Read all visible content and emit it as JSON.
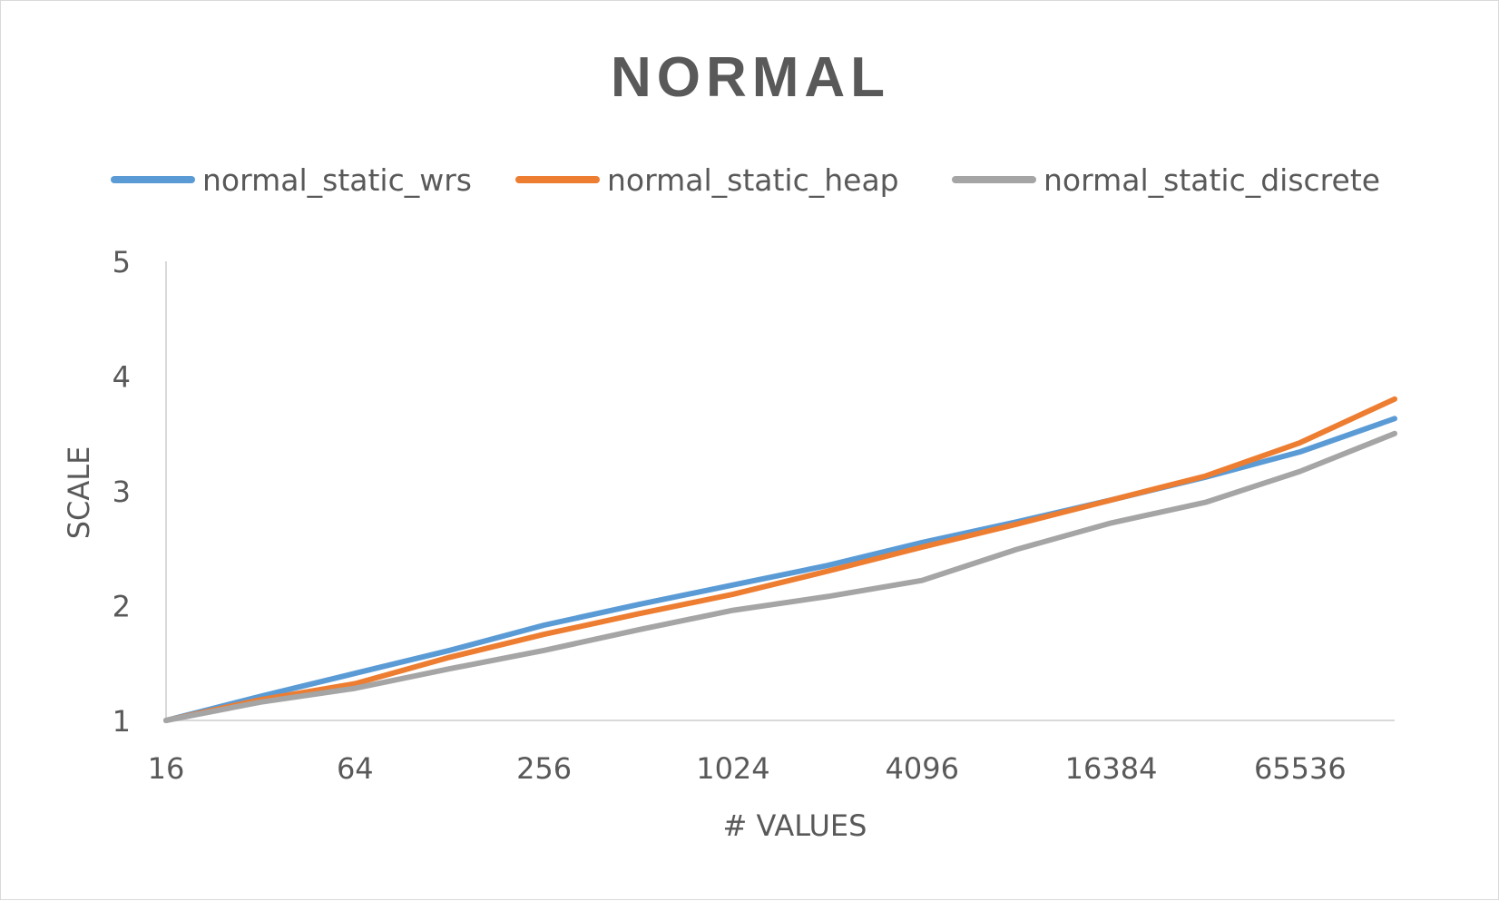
{
  "chart_data": {
    "type": "line",
    "title": "NORMAL",
    "xlabel": "# VALUES",
    "ylabel": "SCALE",
    "x": [
      16,
      32,
      64,
      128,
      256,
      512,
      1024,
      2048,
      4096,
      8192,
      16384,
      32768,
      65536,
      131072
    ],
    "x_tick_labels": [
      "16",
      "64",
      "256",
      "1024",
      "4096",
      "16384",
      "65536"
    ],
    "x_axis_scale": "log2",
    "ylim": [
      1,
      5
    ],
    "y_ticks": [
      "1",
      "2",
      "3",
      "4",
      "5"
    ],
    "grid": false,
    "legend_position": "top",
    "series": [
      {
        "name": "normal_static_wrs",
        "color": "#5b9bd5",
        "values": [
          1.0,
          1.21,
          1.41,
          1.61,
          1.83,
          2.01,
          2.18,
          2.35,
          2.55,
          2.73,
          2.92,
          3.12,
          3.34,
          3.63
        ]
      },
      {
        "name": "normal_static_heap",
        "color": "#ed7d31",
        "values": [
          1.0,
          1.18,
          1.32,
          1.55,
          1.75,
          1.93,
          2.1,
          2.3,
          2.51,
          2.71,
          2.92,
          3.13,
          3.42,
          3.8
        ]
      },
      {
        "name": "normal_static_discrete",
        "color": "#a5a5a5",
        "values": [
          1.0,
          1.16,
          1.28,
          1.45,
          1.61,
          1.79,
          1.96,
          2.08,
          2.22,
          2.49,
          2.72,
          2.9,
          3.17,
          3.5
        ]
      }
    ]
  }
}
